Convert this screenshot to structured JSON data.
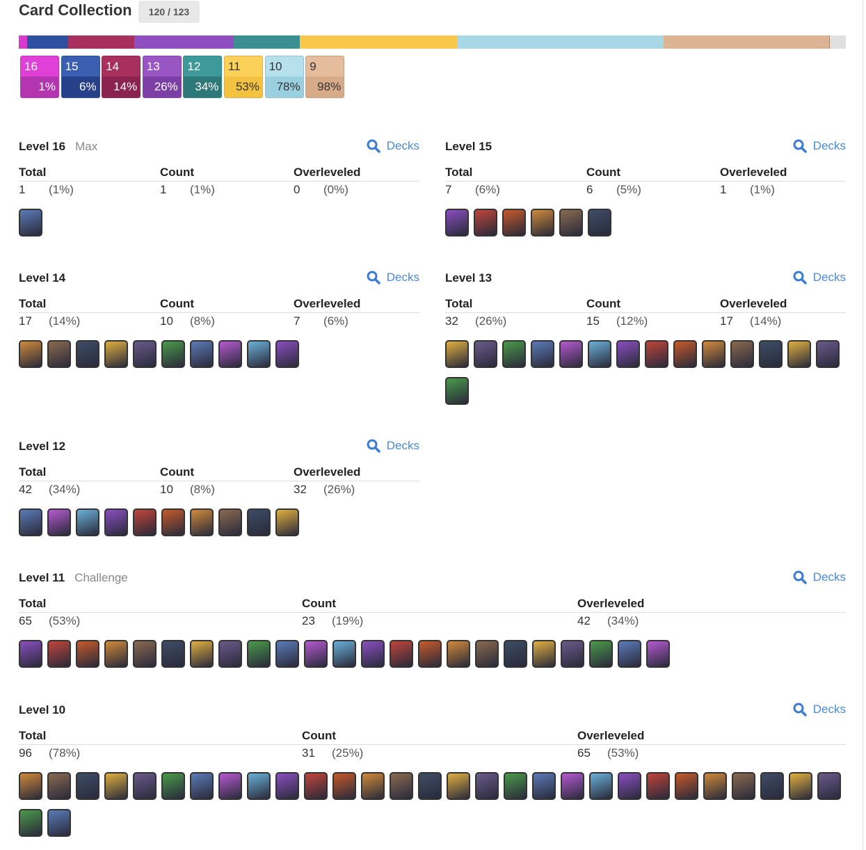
{
  "header": {
    "title": "Card Collection",
    "badge": "120 / 123"
  },
  "chips": [
    {
      "level": "16",
      "percent": "1%"
    },
    {
      "level": "15",
      "percent": "6%"
    },
    {
      "level": "14",
      "percent": "14%"
    },
    {
      "level": "13",
      "percent": "26%"
    },
    {
      "level": "12",
      "percent": "34%"
    },
    {
      "level": "11",
      "percent": "53%"
    },
    {
      "level": "10",
      "percent": "78%"
    },
    {
      "level": "9",
      "percent": "98%"
    }
  ],
  "sections": [
    {
      "title": "Level 16",
      "tag": "Max",
      "link": "Decks",
      "columns": [
        "Total",
        "Count",
        "Overleveled"
      ],
      "stats": [
        {
          "value": 1,
          "percent": "(1%)"
        },
        {
          "value": 1,
          "percent": "(1%)"
        },
        {
          "value": 0,
          "percent": "(0%)"
        }
      ]
    },
    {
      "title": "Level 15",
      "link": "Decks",
      "columns": [
        "Total",
        "Count",
        "Overleveled"
      ],
      "stats": [
        {
          "value": 7,
          "percent": "(6%)"
        },
        {
          "value": 6,
          "percent": "(5%)"
        },
        {
          "value": 1,
          "percent": "(1%)"
        }
      ]
    },
    {
      "title": "Level 14",
      "link": "Decks",
      "columns": [
        "Total",
        "Count",
        "Overleveled"
      ],
      "stats": [
        {
          "value": 17,
          "percent": "(14%)"
        },
        {
          "value": 10,
          "percent": "(8%)"
        },
        {
          "value": 7,
          "percent": "(6%)"
        }
      ]
    },
    {
      "title": "Level 13",
      "link": "Decks",
      "columns": [
        "Total",
        "Count",
        "Overleveled"
      ],
      "stats": [
        {
          "value": 32,
          "percent": "(26%)"
        },
        {
          "value": 15,
          "percent": "(12%)"
        },
        {
          "value": 17,
          "percent": "(14%)"
        }
      ]
    },
    {
      "title": "Level 12",
      "link": "Decks",
      "columns": [
        "Total",
        "Count",
        "Overleveled"
      ],
      "stats": [
        {
          "value": 42,
          "percent": "(34%)"
        },
        {
          "value": 10,
          "percent": "(8%)"
        },
        {
          "value": 32,
          "percent": "(26%)"
        }
      ]
    },
    {
      "title": "Level 11",
      "tag": "Challenge",
      "link": "Decks",
      "columns": [
        "Total",
        "Count",
        "Overleveled"
      ],
      "stats": [
        {
          "value": 65,
          "percent": "(53%)"
        },
        {
          "value": 23,
          "percent": "(19%)"
        },
        {
          "value": 42,
          "percent": "(34%)"
        }
      ]
    },
    {
      "title": "Level 10",
      "link": "Decks",
      "columns": [
        "Total",
        "Count",
        "Overleveled"
      ],
      "stats": [
        {
          "value": 96,
          "percent": "(78%)"
        },
        {
          "value": 31,
          "percent": "(25%)"
        },
        {
          "value": 65,
          "percent": "(53%)"
        }
      ]
    }
  ]
}
